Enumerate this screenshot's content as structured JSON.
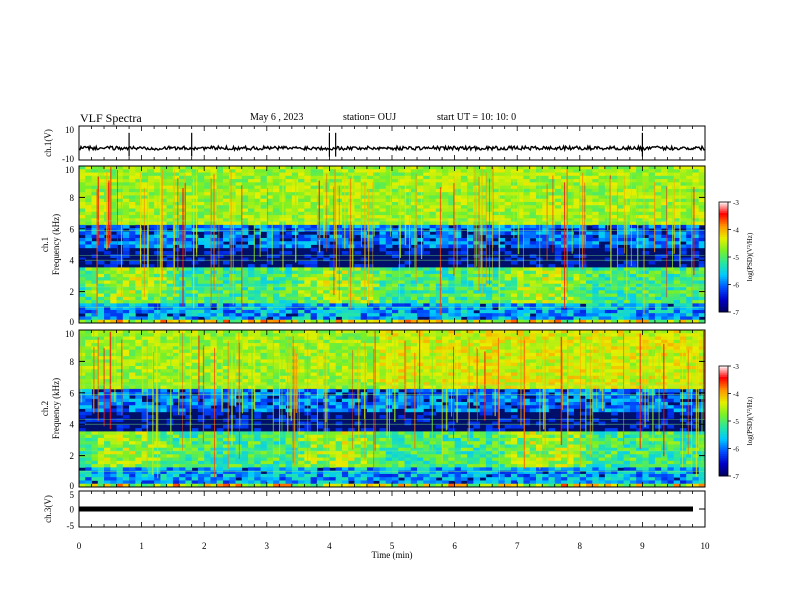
{
  "header": {
    "title": "VLF Spectra",
    "date": "May 6 , 2023",
    "station": "station= OUJ",
    "start": "start UT = 10: 10: 0"
  },
  "chart_data": [
    {
      "type": "line",
      "panel": "ch1-waveform",
      "ylabel": "ch.1(V)",
      "ylim": [
        -10,
        10
      ],
      "y_tick_labels": [
        "10",
        "-10"
      ],
      "baseline": -3,
      "spikes_x_min": [
        0.8,
        1.8,
        4.0,
        4.1,
        9.0
      ]
    },
    {
      "type": "heatmap",
      "panel": "ch1-spectrogram",
      "ylabel": "ch.1 Frequency (kHz)",
      "ylim": [
        0,
        10
      ],
      "y_tick_labels": [
        "0",
        "2",
        "4",
        "6",
        "8",
        "10"
      ],
      "colorbar": {
        "label": "log(PSD)(V²/Hz)",
        "range": [
          -7,
          -3
        ],
        "tick_labels": [
          "-3",
          "-4",
          "-5",
          "-6",
          "-7"
        ]
      }
    },
    {
      "type": "heatmap",
      "panel": "ch2-spectrogram",
      "ylabel": "ch.2 Frequency (kHz)",
      "ylim": [
        0,
        10
      ],
      "y_tick_labels": [
        "0",
        "2",
        "4",
        "6",
        "8",
        "10"
      ],
      "colorbar": {
        "label": "log(PSD)(V²/Hz)",
        "range": [
          -7,
          -3
        ],
        "tick_labels": [
          "-3",
          "-4",
          "-5",
          "-6",
          "-7"
        ]
      }
    },
    {
      "type": "line",
      "panel": "ch3-waveform",
      "ylabel": "ch.3(V)",
      "ylim": [
        -5,
        5
      ],
      "y_tick_labels": [
        "5",
        "0",
        "-5"
      ],
      "baseline": 0,
      "xlabel": "Time (min)",
      "xlim": [
        0,
        10
      ],
      "x_tick_labels": [
        "0",
        "1",
        "2",
        "3",
        "4",
        "5",
        "6",
        "7",
        "8",
        "9",
        "10"
      ]
    }
  ]
}
